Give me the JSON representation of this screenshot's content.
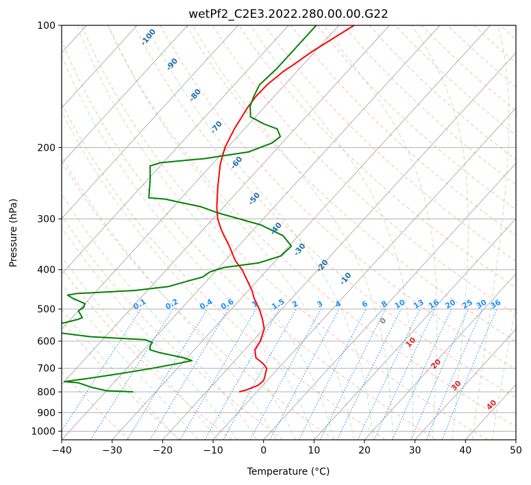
{
  "chart_data": {
    "type": "line",
    "title": "wetPf2_C2E3.2022.280.00.00.G22",
    "xlabel": "Temperature (°C)",
    "ylabel": "Pressure (hPa)",
    "xlim": [
      -40,
      50
    ],
    "ylim": [
      1050,
      100
    ],
    "y_scale": "log",
    "skew_t": true,
    "grid": true,
    "x_ticks": [
      -40,
      -30,
      -20,
      -10,
      0,
      10,
      20,
      30,
      40,
      50
    ],
    "x_tick_labels": [
      "−40",
      "−30",
      "−20",
      "−10",
      "0",
      "10",
      "20",
      "30",
      "40",
      "50"
    ],
    "y_ticks": [
      100,
      200,
      300,
      400,
      500,
      600,
      700,
      800,
      900,
      1000
    ],
    "y_tick_labels": [
      "100",
      "200",
      "300",
      "400",
      "500",
      "600",
      "700",
      "800",
      "900",
      "1000"
    ],
    "series": [
      {
        "role": "temperature",
        "color": "#ff0000",
        "points": [
          {
            "p": 800,
            "t": -13.5
          },
          {
            "p": 790,
            "t": -12.3
          },
          {
            "p": 770,
            "t": -10.9
          },
          {
            "p": 750,
            "t": -10.7
          },
          {
            "p": 730,
            "t": -11.3
          },
          {
            "p": 700,
            "t": -12.3
          },
          {
            "p": 680,
            "t": -14.0
          },
          {
            "p": 660,
            "t": -16.3
          },
          {
            "p": 630,
            "t": -18.0
          },
          {
            "p": 600,
            "t": -18.5
          },
          {
            "p": 560,
            "t": -19.9
          },
          {
            "p": 530,
            "t": -22.0
          },
          {
            "p": 500,
            "t": -24.5
          },
          {
            "p": 470,
            "t": -27.5
          },
          {
            "p": 450,
            "t": -29.3
          },
          {
            "p": 430,
            "t": -31.5
          },
          {
            "p": 400,
            "t": -35.0
          },
          {
            "p": 380,
            "t": -38.0
          },
          {
            "p": 350,
            "t": -41.8
          },
          {
            "p": 320,
            "t": -46.2
          },
          {
            "p": 300,
            "t": -49.0
          },
          {
            "p": 280,
            "t": -51.4
          },
          {
            "p": 250,
            "t": -54.8
          },
          {
            "p": 220,
            "t": -58.4
          },
          {
            "p": 200,
            "t": -60.5
          },
          {
            "p": 180,
            "t": -62.0
          },
          {
            "p": 160,
            "t": -63.2
          },
          {
            "p": 150,
            "t": -63.6
          },
          {
            "p": 140,
            "t": -63.5
          },
          {
            "p": 130,
            "t": -62.7
          },
          {
            "p": 125,
            "t": -61.9
          },
          {
            "p": 120,
            "t": -61.2
          },
          {
            "p": 115,
            "t": -60.4
          },
          {
            "p": 110,
            "t": -59.3
          },
          {
            "p": 105,
            "t": -58.2
          },
          {
            "p": 100,
            "t": -57.0
          }
        ]
      },
      {
        "role": "dewpoint",
        "color": "#008000",
        "points": [
          {
            "p": 800,
            "t": -34.5
          },
          {
            "p": 795,
            "t": -40.0
          },
          {
            "p": 780,
            "t": -43.5
          },
          {
            "p": 760,
            "t": -47.0
          },
          {
            "p": 755,
            "t": -50.0
          },
          {
            "p": 750,
            "t": -48.5
          },
          {
            "p": 740,
            "t": -45.5
          },
          {
            "p": 720,
            "t": -40.0
          },
          {
            "p": 700,
            "t": -35.0
          },
          {
            "p": 680,
            "t": -30.5
          },
          {
            "p": 670,
            "t": -28.5
          },
          {
            "p": 660,
            "t": -30.5
          },
          {
            "p": 640,
            "t": -36.5
          },
          {
            "p": 630,
            "t": -38.8
          },
          {
            "p": 615,
            "t": -39.5
          },
          {
            "p": 605,
            "t": -39.6
          },
          {
            "p": 595,
            "t": -41.5
          },
          {
            "p": 585,
            "t": -53.0
          },
          {
            "p": 570,
            "t": -61.0
          },
          {
            "p": 555,
            "t": -63.5
          },
          {
            "p": 530,
            "t": -58.5
          },
          {
            "p": 525,
            "t": -58.0
          },
          {
            "p": 505,
            "t": -60.0
          },
          {
            "p": 495,
            "t": -59.6
          },
          {
            "p": 485,
            "t": -60.0
          },
          {
            "p": 470,
            "t": -63.5
          },
          {
            "p": 462,
            "t": -65.0
          },
          {
            "p": 458,
            "t": -63.5
          },
          {
            "p": 450,
            "t": -52.5
          },
          {
            "p": 440,
            "t": -46.5
          },
          {
            "p": 428,
            "t": -44.0
          },
          {
            "p": 417,
            "t": -41.5
          },
          {
            "p": 405,
            "t": -41.0
          },
          {
            "p": 395,
            "t": -39.0
          },
          {
            "p": 385,
            "t": -33.0
          },
          {
            "p": 370,
            "t": -29.8
          },
          {
            "p": 350,
            "t": -29.5
          },
          {
            "p": 330,
            "t": -33.0
          },
          {
            "p": 310,
            "t": -39.5
          },
          {
            "p": 290,
            "t": -50.0
          },
          {
            "p": 280,
            "t": -54.5
          },
          {
            "p": 273,
            "t": -59.5
          },
          {
            "p": 268,
            "t": -63.0
          },
          {
            "p": 266,
            "t": -66.5
          },
          {
            "p": 240,
            "t": -69.5
          },
          {
            "p": 222,
            "t": -72.0
          },
          {
            "p": 218,
            "t": -70.5
          },
          {
            "p": 213,
            "t": -62.5
          },
          {
            "p": 205,
            "t": -55.0
          },
          {
            "p": 195,
            "t": -52.0
          },
          {
            "p": 188,
            "t": -51.5
          },
          {
            "p": 180,
            "t": -53.5
          },
          {
            "p": 175,
            "t": -57.0
          },
          {
            "p": 168,
            "t": -61.0
          },
          {
            "p": 158,
            "t": -63.0
          },
          {
            "p": 150,
            "t": -64.0
          },
          {
            "p": 140,
            "t": -65.0
          },
          {
            "p": 128,
            "t": -64.5
          },
          {
            "p": 118,
            "t": -64.5
          },
          {
            "p": 110,
            "t": -64.5
          },
          {
            "p": 104,
            "t": -64.5
          },
          {
            "p": 100,
            "t": -64.5
          }
        ]
      }
    ],
    "mixing_ratio_labels": [
      "0.1",
      "0.2",
      "0.4",
      "0.6",
      "1",
      "1.5",
      "2",
      "3",
      "4",
      "6",
      "8",
      "10",
      "13",
      "16",
      "20",
      "25",
      "30",
      "36"
    ],
    "mixing_ratio_values": [
      0.1,
      0.2,
      0.4,
      0.6,
      1,
      1.5,
      2,
      3,
      4,
      6,
      8,
      10,
      13,
      16,
      20,
      25,
      30,
      36
    ],
    "dry_adiabat_labels": [
      "-100",
      "-90",
      "-80",
      "-70",
      "-60",
      "-50",
      "-40",
      "-30",
      "-20",
      "-10"
    ],
    "dry_adiabat_label_values": [
      -100,
      -90,
      -80,
      -70,
      -60,
      -50,
      -40,
      -30,
      -20,
      -10
    ],
    "moist_adiabat_labels": [
      "0",
      "10",
      "20",
      "30",
      "40"
    ],
    "moist_adiabat_label_values": [
      0,
      10,
      20,
      30,
      40
    ]
  },
  "colors": {
    "temperature": "#ff0000",
    "dewpoint": "#008000",
    "isobar": "#b0b0b0",
    "isotherm": "#b0b0b0",
    "dry_adiabat": "#fa8072",
    "moist_adiabat": "#90c890",
    "mixing_ratio": "#1e90ff",
    "dry_label": "#1f6fa8",
    "moist_label_warm": "#d62728",
    "moist_label_zero": "#808080",
    "mixing_label": "#1e90ff"
  }
}
